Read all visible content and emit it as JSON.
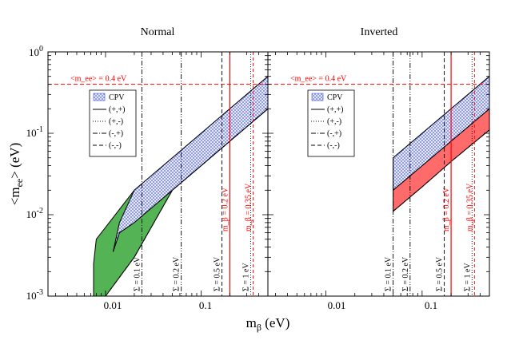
{
  "chart_data": {
    "type": "area",
    "xscale": "log",
    "yscale": "log",
    "xlabel": "m_β (eV)",
    "ylabel": "<m_ee> (eV)",
    "xlim": [
      0.0025,
      0.5
    ],
    "ylim": [
      0.001,
      1
    ],
    "xticks": [
      "0.01",
      "0.1"
    ],
    "yticks": [
      "10^-3",
      "10^-2",
      "10^-1",
      "10^0"
    ],
    "panels": [
      {
        "title": "Normal",
        "band_colors": {
          "CPV": "#9aa6ff",
          "cp_conserving": "#54b354"
        },
        "CPV_band": {
          "m_beta": [
            0.012,
            0.014,
            0.02,
            0.05,
            0.1,
            0.2,
            0.5
          ],
          "upper": [
            0.0035,
            0.008,
            0.02,
            0.05,
            0.1,
            0.2,
            0.5
          ],
          "lower": [
            0.0035,
            0.006,
            0.008,
            0.02,
            0.04,
            0.08,
            0.2
          ]
        },
        "green_band": {
          "m_beta": [
            0.0075,
            0.008,
            0.01,
            0.02,
            0.05,
            0.1,
            0.2,
            0.5
          ],
          "upper": [
            0.0025,
            0.005,
            0.007,
            0.02,
            0.05,
            0.1,
            0.2,
            0.5
          ],
          "lower": [
            0.001,
            0.001,
            0.001,
            0.003,
            0.02,
            0.04,
            0.08,
            0.2
          ]
        },
        "vertical_lines": [
          {
            "label": "Σ = 0.1 eV",
            "m_beta": 0.024
          },
          {
            "label": "Σ = 0.2 eV",
            "m_beta": 0.062
          },
          {
            "label": "Σ = 0.5 eV",
            "m_beta": 0.165
          },
          {
            "label": "Σ = 1 eV",
            "m_beta": 0.33
          }
        ],
        "red_lines": [
          {
            "label": "m_β = 0.2 eV",
            "m_beta": 0.2
          },
          {
            "label": "m_β = 0.35 eV",
            "m_beta": 0.35
          }
        ]
      },
      {
        "title": "Inverted",
        "band_colors": {
          "CPV": "#9aa6ff",
          "cp_conserving": "#ff6b6b"
        },
        "CPV_band": {
          "m_beta": [
            0.05,
            0.1,
            0.2,
            0.5
          ],
          "upper": [
            0.05,
            0.1,
            0.2,
            0.5
          ],
          "lower": [
            0.02,
            0.04,
            0.08,
            0.2
          ]
        },
        "red_band": {
          "m_beta": [
            0.05,
            0.1,
            0.2,
            0.5
          ],
          "upper": [
            0.05,
            0.1,
            0.2,
            0.5
          ],
          "lower": [
            0.011,
            0.022,
            0.045,
            0.11
          ]
        },
        "vertical_lines": [
          {
            "label": "Σ = 0.1 eV",
            "m_beta": 0.05
          },
          {
            "label": "Σ = 0.2 eV",
            "m_beta": 0.075
          },
          {
            "label": "Σ = 0.5 eV",
            "m_beta": 0.17
          },
          {
            "label": "Σ = 1 eV",
            "m_beta": 0.33
          }
        ],
        "red_lines": [
          {
            "label": "m_β = 0.2 eV",
            "m_beta": 0.2
          },
          {
            "label": "m_β = 0.35 eV",
            "m_beta": 0.35
          }
        ]
      }
    ],
    "horizontal_line": {
      "label": "<m_ee> = 0.4 eV",
      "value": 0.4,
      "color": "#ff0000"
    },
    "legend": {
      "placement": "upper-left",
      "entries": [
        {
          "label": "CPV",
          "style": "crosshatch"
        },
        {
          "label": "(+,+)",
          "style": "solid"
        },
        {
          "label": "(+,-)",
          "style": "dotted"
        },
        {
          "label": "(-,+)",
          "style": "dashdot"
        },
        {
          "label": "(-,-)",
          "style": "dashed"
        }
      ]
    }
  }
}
